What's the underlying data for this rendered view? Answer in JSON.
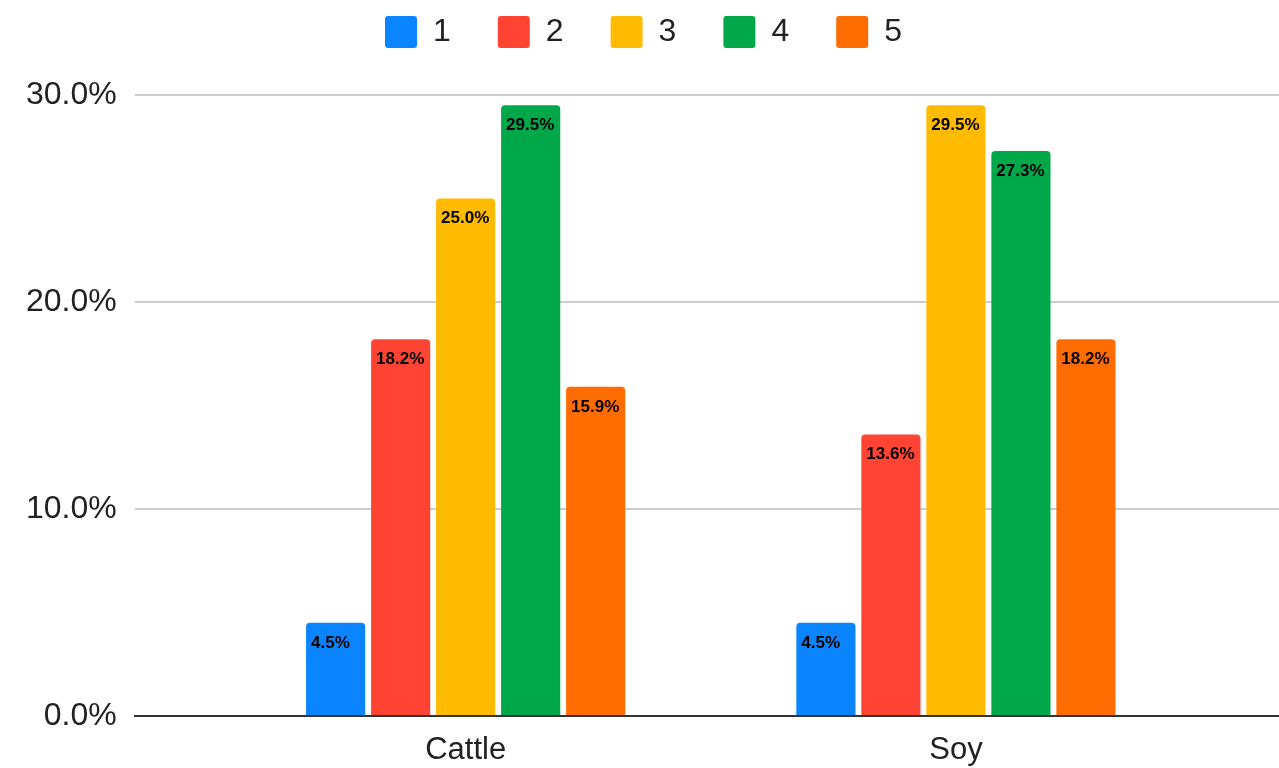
{
  "chart_data": {
    "type": "bar",
    "categories": [
      "Cattle",
      "Soy"
    ],
    "series": [
      {
        "name": "1",
        "color": "#0a84ff",
        "values": [
          4.5,
          4.5
        ],
        "value_labels": [
          "4.5%",
          "4.5%"
        ]
      },
      {
        "name": "2",
        "color": "#ff4433",
        "values": [
          18.2,
          13.6
        ],
        "value_labels": [
          "18.2%",
          "13.6%"
        ]
      },
      {
        "name": "3",
        "color": "#ffbb00",
        "values": [
          25.0,
          29.5
        ],
        "value_labels": [
          "25.0%",
          "29.5%"
        ]
      },
      {
        "name": "4",
        "color": "#00a84a",
        "values": [
          29.5,
          27.3
        ],
        "value_labels": [
          "29.5%",
          "27.3%"
        ]
      },
      {
        "name": "5",
        "color": "#ff6c00",
        "values": [
          15.9,
          18.2
        ],
        "value_labels": [
          "15.9%",
          "18.2%"
        ]
      }
    ],
    "ylim": [
      0,
      30
    ],
    "yticks": [
      {
        "value": 0,
        "label": "0.0%"
      },
      {
        "value": 10,
        "label": "10.0%"
      },
      {
        "value": 20,
        "label": "20.0%"
      },
      {
        "value": 30,
        "label": "30.0%"
      }
    ],
    "grid": "y",
    "legend": "top"
  }
}
